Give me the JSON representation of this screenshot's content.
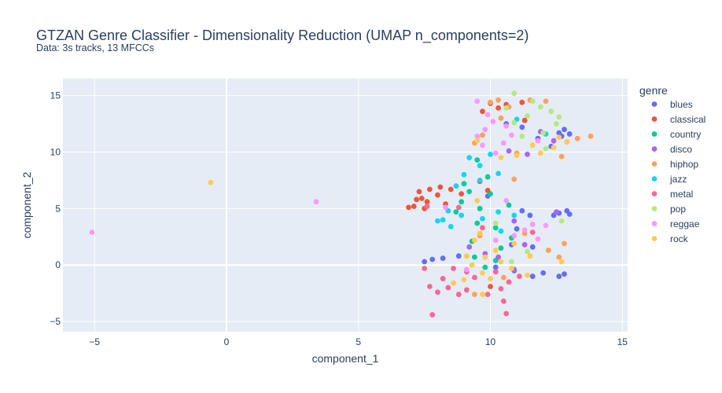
{
  "chart_data": {
    "type": "scatter",
    "title": "GTZAN Genre Classifier - Dimensionality Reduction (UMAP n_components=2)",
    "subtitle": "Data: 3s tracks, 13 MFCCs",
    "xlabel": "component_1",
    "ylabel": "component_2",
    "xlim": [
      -6.2,
      15.2
    ],
    "ylim": [
      -5.9,
      16.5
    ],
    "xticks": [
      -5,
      0,
      5,
      10,
      15
    ],
    "yticks": [
      -5,
      0,
      5,
      10,
      15
    ],
    "grid": true,
    "legend_title": "genre",
    "legend_position": "right",
    "plot_bgcolor": "#e5ecf6",
    "series": [
      {
        "name": "blues",
        "color": "#636efa",
        "points": [
          [
            10.6,
            12.5
          ],
          [
            11.2,
            12.2
          ],
          [
            12.6,
            11.7
          ],
          [
            13.0,
            11.6
          ],
          [
            12.8,
            12.0
          ],
          [
            11.8,
            11.2
          ],
          [
            12.6,
            4.6
          ],
          [
            13.0,
            4.5
          ],
          [
            12.9,
            4.8
          ],
          [
            12.4,
            4.4
          ],
          [
            11.5,
            4.4
          ],
          [
            11.2,
            4.8
          ],
          [
            8.8,
            0.8
          ],
          [
            8.2,
            0.6
          ],
          [
            7.8,
            0.5
          ],
          [
            7.5,
            0.3
          ],
          [
            10.8,
            1.8
          ],
          [
            11.6,
            1.6
          ],
          [
            12.0,
            -0.7
          ],
          [
            12.8,
            -0.8
          ],
          [
            12.6,
            -1.0
          ],
          [
            11.6,
            -1.0
          ],
          [
            10.9,
            -0.5
          ],
          [
            10.2,
            -0.2
          ],
          [
            11.0,
            3.2
          ],
          [
            9.9,
            6.1
          ],
          [
            12.3,
            10.5
          ],
          [
            12.7,
            11.4
          ]
        ]
      },
      {
        "name": "classical",
        "color": "#ef553b",
        "points": [
          [
            7.3,
            6.5
          ],
          [
            7.7,
            6.7
          ],
          [
            7.2,
            5.8
          ],
          [
            6.9,
            5.1
          ],
          [
            7.5,
            5.0
          ],
          [
            8.0,
            6.2
          ],
          [
            8.5,
            6.7
          ],
          [
            8.9,
            6.3
          ],
          [
            8.3,
            5.4
          ],
          [
            7.6,
            5.6
          ],
          [
            7.1,
            5.2
          ],
          [
            8.1,
            6.9
          ],
          [
            10.0,
            14.3
          ],
          [
            10.3,
            13.9
          ],
          [
            10.6,
            14.2
          ],
          [
            11.2,
            14.4
          ],
          [
            9.7,
            13.6
          ],
          [
            11.3,
            12.8
          ],
          [
            9.6,
            7.4
          ],
          [
            9.9,
            6.6
          ],
          [
            10.0,
            -1.9
          ],
          [
            7.4,
            5.9
          ]
        ]
      },
      {
        "name": "country",
        "color": "#00cc96",
        "points": [
          [
            8.9,
            5.6
          ],
          [
            9.2,
            6.5
          ],
          [
            9.6,
            5.0
          ],
          [
            10.0,
            6.3
          ],
          [
            9.5,
            3.7
          ],
          [
            9.3,
            2.1
          ],
          [
            10.2,
            3.3
          ],
          [
            9.4,
            0.7
          ],
          [
            10.2,
            0.4
          ],
          [
            10.7,
            5.3
          ],
          [
            8.7,
            4.7
          ],
          [
            9.9,
            7.8
          ],
          [
            9.0,
            7.2
          ],
          [
            10.4,
            1.5
          ],
          [
            9.8,
            -0.2
          ],
          [
            10.8,
            2.4
          ],
          [
            9.5,
            9.3
          ]
        ]
      },
      {
        "name": "disco",
        "color": "#ab63fa",
        "points": [
          [
            11.9,
            11.8
          ],
          [
            12.4,
            11.0
          ],
          [
            12.9,
            10.9
          ],
          [
            10.7,
            10.1
          ],
          [
            11.4,
            9.8
          ],
          [
            12.5,
            4.7
          ],
          [
            11.3,
            1.8
          ],
          [
            10.3,
            0.7
          ],
          [
            10.9,
            -0.4
          ],
          [
            9.8,
            1.0
          ],
          [
            9.2,
            1.6
          ],
          [
            10.9,
            3.9
          ]
        ]
      },
      {
        "name": "hiphop",
        "color": "#ffa15a",
        "points": [
          [
            10.3,
            14.6
          ],
          [
            10.0,
            14.4
          ],
          [
            10.7,
            14.0
          ],
          [
            11.5,
            14.6
          ],
          [
            12.1,
            14.5
          ],
          [
            10.4,
            13.0
          ],
          [
            9.7,
            11.5
          ],
          [
            9.4,
            10.8
          ],
          [
            13.3,
            11.2
          ],
          [
            13.8,
            11.4
          ],
          [
            12.7,
            9.6
          ],
          [
            11.0,
            9.9
          ],
          [
            12.2,
            1.3
          ],
          [
            12.6,
            0.7
          ],
          [
            12.8,
            1.9
          ],
          [
            9.6,
            2.6
          ],
          [
            10.5,
            -1.1
          ],
          [
            9.4,
            -2.6
          ],
          [
            11.3,
            2.8
          ],
          [
            10.9,
            7.6
          ]
        ]
      },
      {
        "name": "jazz",
        "color": "#19d3f3",
        "points": [
          [
            9.2,
            9.5
          ],
          [
            10.0,
            9.8
          ],
          [
            9.6,
            8.8
          ],
          [
            9.0,
            8.0
          ],
          [
            8.7,
            7.0
          ],
          [
            9.6,
            7.5
          ],
          [
            8.2,
            4.0
          ],
          [
            8.0,
            3.9
          ],
          [
            8.5,
            3.4
          ],
          [
            8.9,
            4.4
          ],
          [
            10.3,
            4.7
          ],
          [
            9.7,
            4.1
          ],
          [
            10.9,
            4.4
          ],
          [
            10.4,
            3.0
          ],
          [
            11.0,
            12.9
          ],
          [
            12.1,
            11.6
          ],
          [
            10.3,
            8.1
          ],
          [
            8.4,
            4.8
          ]
        ]
      },
      {
        "name": "metal",
        "color": "#ff6692",
        "points": [
          [
            7.7,
            -1.9
          ],
          [
            8.0,
            -2.4
          ],
          [
            8.4,
            -2.0
          ],
          [
            8.8,
            -2.6
          ],
          [
            9.1,
            -2.2
          ],
          [
            9.4,
            -1.1
          ],
          [
            9.9,
            -2.6
          ],
          [
            10.4,
            -2.1
          ],
          [
            10.7,
            -1.5
          ],
          [
            11.1,
            -1.0
          ],
          [
            10.5,
            -3.2
          ],
          [
            10.6,
            -4.3
          ],
          [
            7.8,
            -4.4
          ],
          [
            8.2,
            -1.2
          ],
          [
            9.1,
            -0.6
          ],
          [
            8.6,
            -0.3
          ],
          [
            10.2,
            -0.6
          ],
          [
            7.5,
            -0.3
          ],
          [
            8.8,
            5.1
          ],
          [
            9.7,
            3.3
          ],
          [
            11.6,
            2.9
          ],
          [
            7.6,
            5.2
          ]
        ]
      },
      {
        "name": "pop",
        "color": "#b6e880",
        "points": [
          [
            10.9,
            15.2
          ],
          [
            11.6,
            14.5
          ],
          [
            11.9,
            14.0
          ],
          [
            12.3,
            13.6
          ],
          [
            12.6,
            13.1
          ],
          [
            11.4,
            13.2
          ],
          [
            10.9,
            12.6
          ],
          [
            12.5,
            12.5
          ],
          [
            12.0,
            11.7
          ],
          [
            11.2,
            11.4
          ],
          [
            10.6,
            13.9
          ],
          [
            12.1,
            10.3
          ],
          [
            12.7,
            3.9
          ],
          [
            11.4,
            1.2
          ],
          [
            10.2,
            3.7
          ],
          [
            10.8,
            0.3
          ]
        ]
      },
      {
        "name": "reggae",
        "color": "#ff97ff",
        "points": [
          [
            -5.1,
            2.9
          ],
          [
            3.4,
            5.6
          ],
          [
            9.5,
            14.5
          ],
          [
            9.9,
            13.3
          ],
          [
            10.1,
            12.7
          ],
          [
            9.8,
            12.0
          ],
          [
            9.5,
            11.4
          ],
          [
            9.7,
            10.6
          ],
          [
            10.2,
            9.9
          ],
          [
            10.5,
            10.8
          ],
          [
            10.8,
            11.5
          ],
          [
            10.6,
            12.3
          ],
          [
            11.6,
            3.6
          ],
          [
            12.1,
            3.5
          ],
          [
            11.3,
            3.1
          ],
          [
            10.9,
            2.6
          ],
          [
            11.8,
            2.3
          ],
          [
            10.2,
            2.2
          ],
          [
            8.3,
            5.1
          ],
          [
            10.6,
            5.7
          ],
          [
            9.1,
            -0.4
          ],
          [
            11.8,
            11.0
          ]
        ]
      },
      {
        "name": "rock",
        "color": "#fecb52",
        "points": [
          [
            -0.6,
            7.3
          ],
          [
            9.5,
            11.0
          ],
          [
            11.6,
            10.6
          ],
          [
            12.4,
            10.4
          ],
          [
            12.9,
            10.9
          ],
          [
            11.9,
            9.9
          ],
          [
            11.0,
            9.7
          ],
          [
            12.6,
            11.3
          ],
          [
            10.0,
            -1.2
          ],
          [
            9.7,
            -0.7
          ],
          [
            9.3,
            0.0
          ],
          [
            9.8,
            0.7
          ],
          [
            10.4,
            0.3
          ],
          [
            10.8,
            -0.3
          ],
          [
            11.4,
            -0.9
          ],
          [
            9.0,
            -1.3
          ],
          [
            8.6,
            -1.6
          ],
          [
            10.2,
            1.3
          ],
          [
            10.9,
            1.9
          ],
          [
            9.6,
            2.8
          ],
          [
            9.7,
            -2.6
          ],
          [
            9.5,
            5.7
          ],
          [
            11.5,
            0.8
          ],
          [
            9.4,
            2.2
          ],
          [
            9.1,
            0.8
          ],
          [
            12.7,
            0.3
          ],
          [
            10.4,
            9.5
          ]
        ]
      }
    ]
  }
}
